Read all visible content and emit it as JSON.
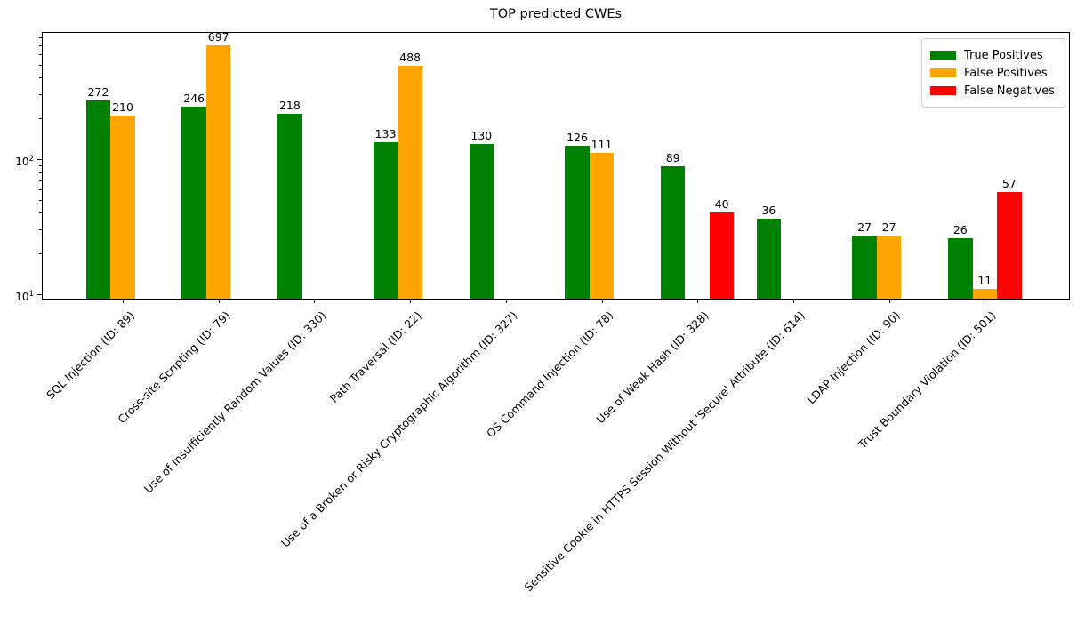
{
  "chart_data": {
    "type": "bar",
    "title": "TOP predicted CWEs",
    "xlabel": "",
    "ylabel": "",
    "y_scale": "log",
    "ylim": [
      9.1,
      875
    ],
    "grid": false,
    "legend_position": "upper right",
    "categories": [
      "SQL Injection (ID: 89)",
      "Cross-site Scripting (ID: 79)",
      "Use of Insufficiently Random Values (ID: 330)",
      "Path Traversal (ID: 22)",
      "Use of a Broken or Risky Cryptographic Algorithm (ID: 327)",
      "OS Command Injection (ID: 78)",
      "Use of Weak Hash (ID: 328)",
      "Sensitive Cookie in HTTPS Session Without 'Secure' Attribute (ID: 614)",
      "LDAP Injection (ID: 90)",
      "Trust Boundary Violation (ID: 501)"
    ],
    "series": [
      {
        "name": "True Positives",
        "color": "#008000",
        "values": [
          272,
          246,
          218,
          133,
          130,
          126,
          89,
          36,
          27,
          26
        ]
      },
      {
        "name": "False Positives",
        "color": "#FFA500",
        "values": [
          210,
          697,
          null,
          488,
          null,
          111,
          null,
          null,
          27,
          11
        ]
      },
      {
        "name": "False Negatives",
        "color": "#FF0000",
        "values": [
          null,
          null,
          null,
          null,
          null,
          null,
          40,
          null,
          null,
          57
        ]
      }
    ],
    "y_ticks": [
      {
        "value": 10,
        "base": "10",
        "exp": "1"
      },
      {
        "value": 100,
        "base": "10",
        "exp": "2"
      }
    ],
    "y_minor_ticks": [
      20,
      30,
      40,
      50,
      60,
      70,
      80,
      90,
      200,
      300,
      400,
      500,
      600,
      700,
      800
    ]
  }
}
